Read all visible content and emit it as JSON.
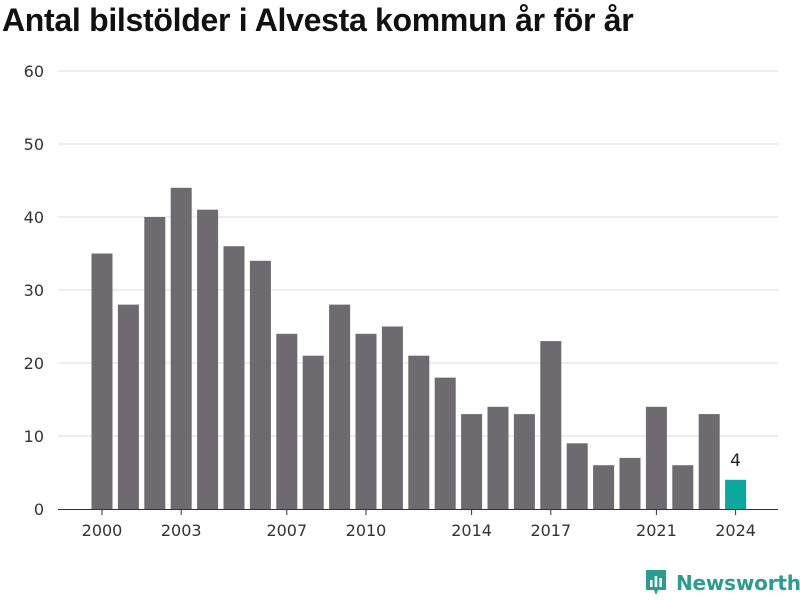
{
  "chart_data": {
    "type": "bar",
    "title": "Antal bilstölder i Alvesta kommun år för år",
    "categories": [
      "2000",
      "2001",
      "2002",
      "2003",
      "2004",
      "2005",
      "2006",
      "2007",
      "2008",
      "2009",
      "2010",
      "2011",
      "2012",
      "2013",
      "2014",
      "2015",
      "2016",
      "2017",
      "2018",
      "2019",
      "2020",
      "2021",
      "2022",
      "2023",
      "2024"
    ],
    "values": [
      35,
      28,
      40,
      44,
      41,
      36,
      34,
      24,
      21,
      28,
      24,
      25,
      21,
      18,
      13,
      14,
      13,
      23,
      9,
      6,
      7,
      14,
      6,
      13,
      4
    ],
    "x_tick_labels": [
      "2000",
      "2003",
      "2007",
      "2010",
      "2014",
      "2017",
      "2021",
      "2024"
    ],
    "y_ticks": [
      0,
      10,
      20,
      30,
      40,
      50,
      60
    ],
    "ylim": [
      0,
      60
    ],
    "grid": true,
    "bar_color": "#6d6b70",
    "highlight_color": "#0aa89e",
    "highlight_category": "2024",
    "highlight_label": "4"
  },
  "brand": {
    "name": "Newsworthy",
    "icon": "newsworthy-logo-icon",
    "color": "#2a9d8f"
  }
}
